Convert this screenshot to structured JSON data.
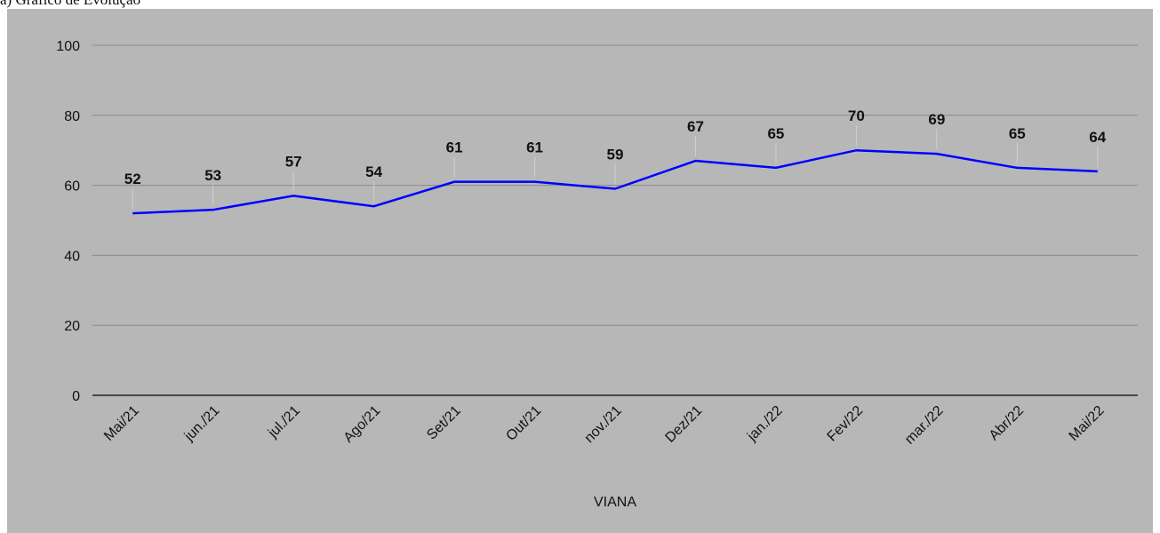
{
  "caption": "a)  Gráfico de Evolução",
  "chart_data": {
    "type": "line",
    "categories": [
      "Mai/21",
      "jun./21",
      "jul./21",
      "Ago/21",
      "Set/21",
      "Out/21",
      "nov./21",
      "Dez/21",
      "jan./22",
      "Fev/22",
      "mar./22",
      "Abr/22",
      "Mai/22"
    ],
    "series": [
      {
        "name": "VIANA",
        "color": "#0000ff",
        "values": [
          52,
          53,
          57,
          54,
          61,
          61,
          59,
          67,
          65,
          70,
          69,
          65,
          64
        ]
      }
    ],
    "x_label": "VIANA",
    "ylim": [
      0,
      100
    ],
    "yticks": [
      0,
      20,
      40,
      60,
      80,
      100
    ],
    "grid": true
  }
}
